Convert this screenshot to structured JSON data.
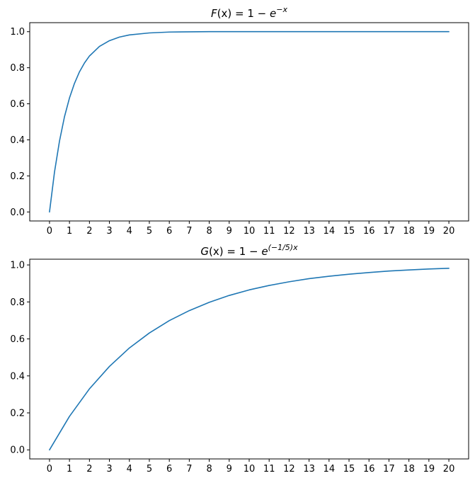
{
  "chart_data": [
    {
      "type": "line",
      "title": {
        "func": "F",
        "arg": "(x)",
        "eq": " = 1 − ",
        "base": "e",
        "exponent": "−x"
      },
      "xlabel": "",
      "ylabel": "",
      "xlim": [
        -0.99,
        20.99
      ],
      "ylim": [
        -0.05,
        1.05
      ],
      "x_ticks": [
        0,
        1,
        2,
        3,
        4,
        5,
        6,
        7,
        8,
        9,
        10,
        11,
        12,
        13,
        14,
        15,
        16,
        17,
        18,
        19,
        20
      ],
      "y_ticks": [
        0.0,
        0.2,
        0.4,
        0.6,
        0.8,
        1.0
      ],
      "y_tick_labels": [
        "0.0",
        "0.2",
        "0.4",
        "0.6",
        "0.8",
        "1.0"
      ],
      "grid": false,
      "line_color": "#1f77b4",
      "series": [
        {
          "x": [
            0,
            0.25,
            0.5,
            0.75,
            1,
            1.25,
            1.5,
            1.75,
            2,
            2.5,
            3,
            3.5,
            4,
            5,
            6,
            7,
            8,
            10,
            12,
            14,
            16,
            18,
            20
          ],
          "values": [
            0.0,
            0.221,
            0.393,
            0.528,
            0.632,
            0.713,
            0.777,
            0.826,
            0.865,
            0.918,
            0.95,
            0.97,
            0.982,
            0.993,
            0.998,
            0.999,
            1.0,
            1.0,
            1.0,
            1.0,
            1.0,
            1.0,
            1.0
          ]
        }
      ]
    },
    {
      "type": "line",
      "title": {
        "func": "G",
        "arg": "(x)",
        "eq": " = 1 − ",
        "base": "e",
        "exponent": "(−1/5)x"
      },
      "xlabel": "",
      "ylabel": "",
      "xlim": [
        -0.99,
        20.99
      ],
      "ylim": [
        -0.049,
        1.031
      ],
      "x_ticks": [
        0,
        1,
        2,
        3,
        4,
        5,
        6,
        7,
        8,
        9,
        10,
        11,
        12,
        13,
        14,
        15,
        16,
        17,
        18,
        19,
        20
      ],
      "y_ticks": [
        0.0,
        0.2,
        0.4,
        0.6,
        0.8,
        1.0
      ],
      "y_tick_labels": [
        "0.0",
        "0.2",
        "0.4",
        "0.6",
        "0.8",
        "1.0"
      ],
      "grid": false,
      "line_color": "#1f77b4",
      "series": [
        {
          "x": [
            0,
            1,
            2,
            3,
            4,
            5,
            6,
            7,
            8,
            9,
            10,
            11,
            12,
            13,
            14,
            15,
            16,
            17,
            18,
            19,
            20
          ],
          "values": [
            0.0,
            0.181,
            0.33,
            0.451,
            0.551,
            0.632,
            0.699,
            0.753,
            0.798,
            0.835,
            0.865,
            0.889,
            0.909,
            0.926,
            0.939,
            0.95,
            0.959,
            0.967,
            0.973,
            0.978,
            0.982
          ]
        }
      ]
    }
  ]
}
